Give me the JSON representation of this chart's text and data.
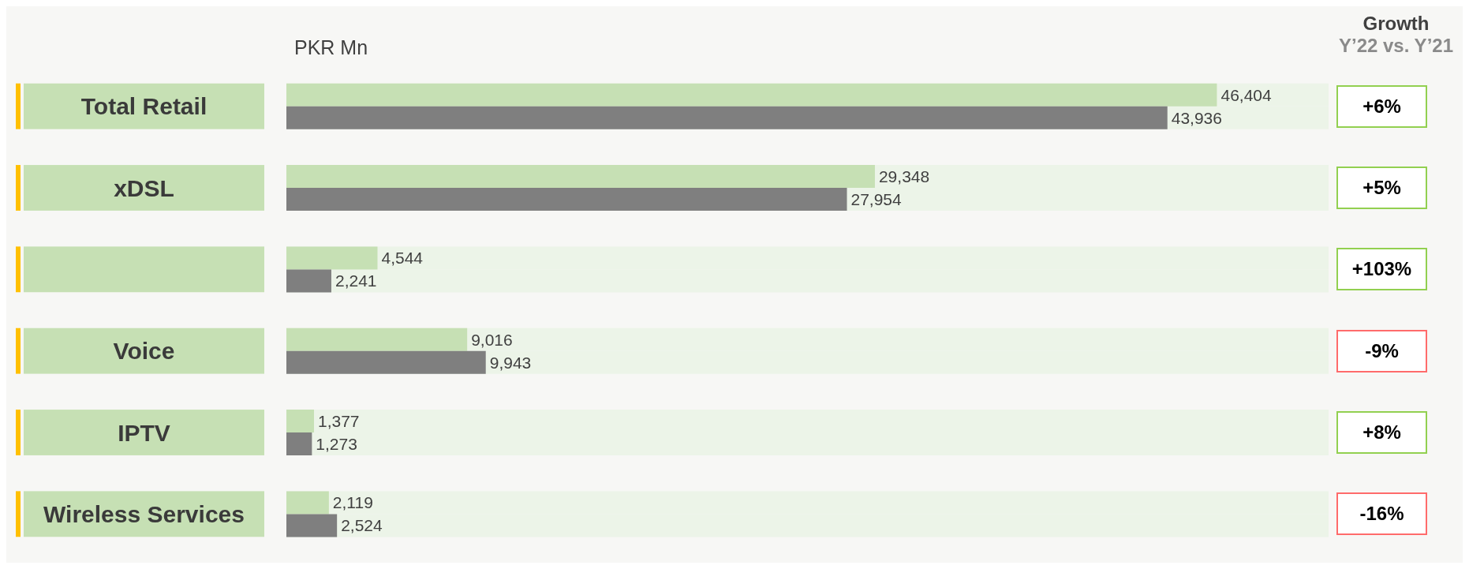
{
  "chart_data": {
    "type": "bar",
    "orientation": "horizontal",
    "xlabel": "PKR Mn",
    "categories": [
      "Total Retail",
      "xDSL",
      null,
      "Voice",
      "IPTV",
      "Wireless Services"
    ],
    "series": [
      {
        "color": "#c6e0b4",
        "values": [
          46404,
          29348,
          4544,
          9016,
          1377,
          2119
        ],
        "value_labels": [
          "46,404",
          "29,348",
          "4,544",
          "9,016",
          "1,377",
          "2,119"
        ]
      },
      {
        "color": "#7f7f7f",
        "values": [
          43936,
          27954,
          2241,
          9943,
          1273,
          2524
        ],
        "value_labels": [
          "43,936",
          "27,954",
          "2,241",
          "9,943",
          "1,273",
          "2,524"
        ]
      }
    ],
    "annotations": [
      "Growth",
      "Y’22 vs. Y’21",
      "+6%",
      "+5%",
      "+103%",
      "-9%",
      "+8%",
      "-16%"
    ]
  }
}
